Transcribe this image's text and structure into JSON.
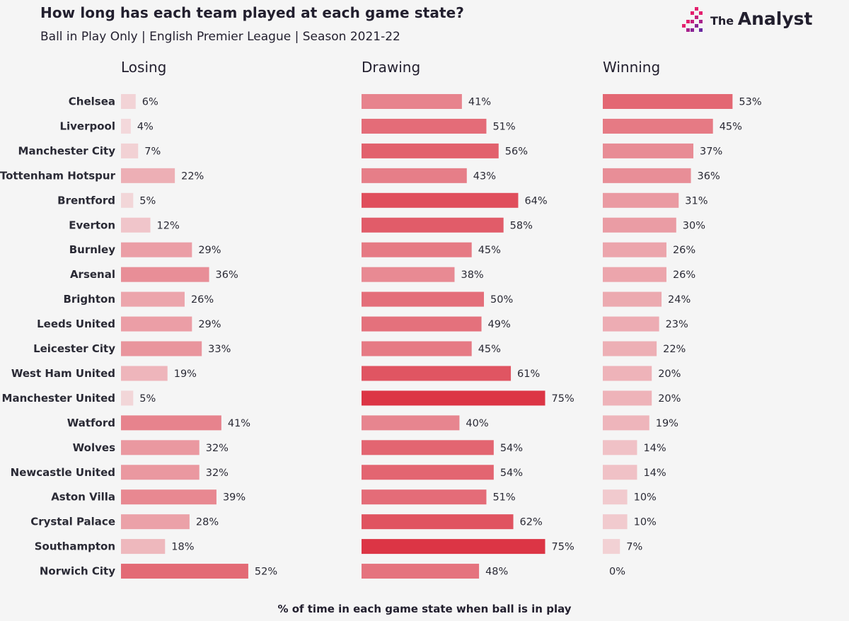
{
  "header": {
    "title": "How long has each team played at each game state?",
    "subtitle": "Ball in Play Only | English Premier League | Season 2021-22"
  },
  "logo": {
    "the": "The",
    "name": "Analyst"
  },
  "colors": {
    "low": "#f4e1e3",
    "high": "#dc3545",
    "text": "#221f2e",
    "background": "#f5f5f5"
  },
  "footer": {
    "label": "% of time in each game state when ball is in play"
  },
  "chart_data": {
    "type": "bar",
    "orientation": "horizontal",
    "title": "How long has each team played at each game state?",
    "subtitle": "Ball in Play Only | English Premier League | Season 2021-22",
    "xlabel": "% of time in each game state when ball is in play",
    "unit": "%",
    "categories": [
      "Chelsea",
      "Liverpool",
      "Manchester City",
      "Tottenham Hotspur",
      "Brentford",
      "Everton",
      "Burnley",
      "Arsenal",
      "Brighton",
      "Leeds United",
      "Leicester City",
      "West Ham United",
      "Manchester United",
      "Watford",
      "Wolves",
      "Newcastle United",
      "Aston Villa",
      "Crystal Palace",
      "Southampton",
      "Norwich City"
    ],
    "series": [
      {
        "name": "Losing",
        "values": [
          6,
          4,
          7,
          22,
          5,
          12,
          29,
          36,
          26,
          29,
          33,
          19,
          5,
          41,
          32,
          32,
          39,
          28,
          18,
          52
        ]
      },
      {
        "name": "Drawing",
        "values": [
          41,
          51,
          56,
          43,
          64,
          58,
          45,
          38,
          50,
          49,
          45,
          61,
          75,
          40,
          54,
          54,
          51,
          62,
          75,
          48
        ]
      },
      {
        "name": "Winning",
        "values": [
          53,
          45,
          37,
          36,
          31,
          30,
          26,
          26,
          24,
          23,
          22,
          20,
          20,
          19,
          14,
          14,
          10,
          10,
          7,
          0
        ]
      }
    ],
    "grid": false,
    "legend": "none"
  }
}
